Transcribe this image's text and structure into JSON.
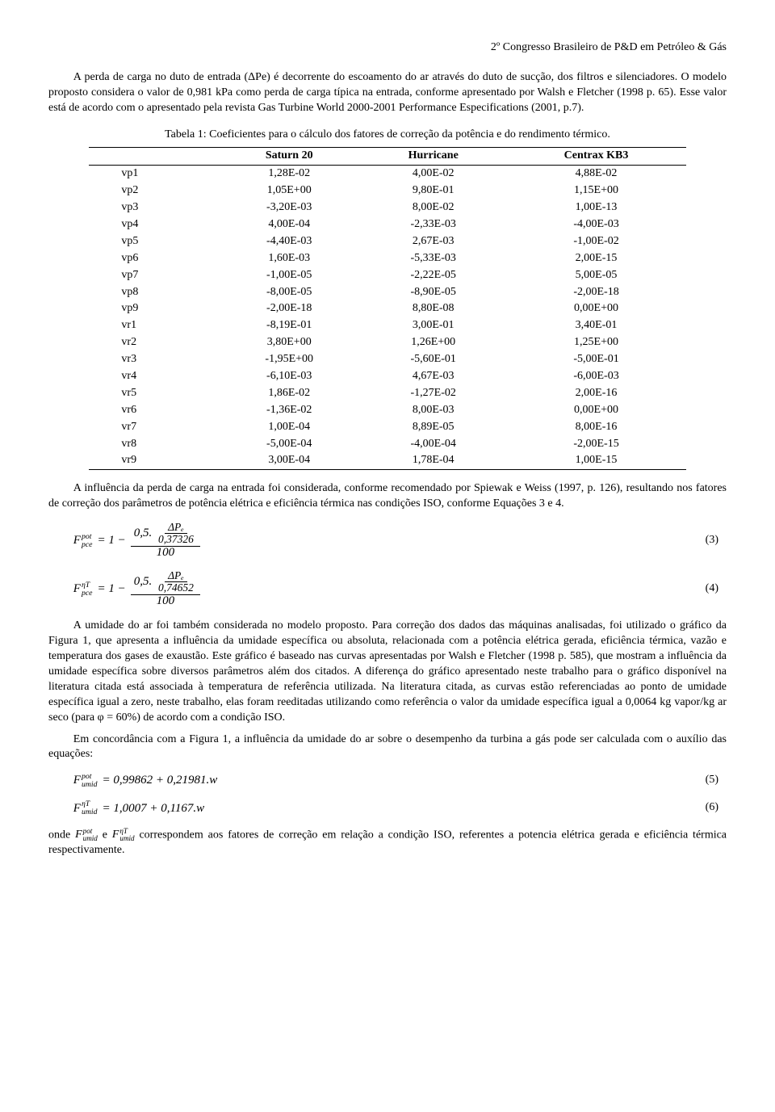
{
  "header": "2º Congresso Brasileiro de P&D em Petróleo & Gás",
  "para1": "A perda de carga no duto de entrada (ΔPe) é decorrente do escoamento do ar através do duto de sucção, dos filtros e silenciadores. O modelo proposto considera o valor de 0,981 kPa como perda de carga típica na entrada, conforme apresentado por Walsh e Fletcher (1998 p. 65). Esse valor está de acordo com o apresentado pela revista Gas Turbine World 2000-2001 Performance Especifications (2001, p.7).",
  "caption1": "Tabela 1: Coeficientes para o cálculo dos fatores de correção da potência e do rendimento térmico.",
  "table": {
    "headers": [
      "",
      "Saturn 20",
      "Hurricane",
      "Centrax KB3"
    ],
    "rows": [
      [
        "vp1",
        "1,28E-02",
        "4,00E-02",
        "4,88E-02"
      ],
      [
        "vp2",
        "1,05E+00",
        "9,80E-01",
        "1,15E+00"
      ],
      [
        "vp3",
        "-3,20E-03",
        "8,00E-02",
        "1,00E-13"
      ],
      [
        "vp4",
        "4,00E-04",
        "-2,33E-03",
        "-4,00E-03"
      ],
      [
        "vp5",
        "-4,40E-03",
        "2,67E-03",
        "-1,00E-02"
      ],
      [
        "vp6",
        "1,60E-03",
        "-5,33E-03",
        "2,00E-15"
      ],
      [
        "vp7",
        "-1,00E-05",
        "-2,22E-05",
        "5,00E-05"
      ],
      [
        "vp8",
        "-8,00E-05",
        "-8,90E-05",
        "-2,00E-18"
      ],
      [
        "vp9",
        "-2,00E-18",
        "8,80E-08",
        "0,00E+00"
      ],
      [
        "vr1",
        "-8,19E-01",
        "3,00E-01",
        "3,40E-01"
      ],
      [
        "vr2",
        "3,80E+00",
        "1,26E+00",
        "1,25E+00"
      ],
      [
        "vr3",
        "-1,95E+00",
        "-5,60E-01",
        "-5,00E-01"
      ],
      [
        "vr4",
        "-6,10E-03",
        "4,67E-03",
        "-6,00E-03"
      ],
      [
        "vr5",
        "1,86E-02",
        "-1,27E-02",
        "2,00E-16"
      ],
      [
        "vr6",
        "-1,36E-02",
        "8,00E-03",
        "0,00E+00"
      ],
      [
        "vr7",
        "1,00E-04",
        "8,89E-05",
        "8,00E-16"
      ],
      [
        "vr8",
        "-5,00E-04",
        "-4,00E-04",
        "-2,00E-15"
      ],
      [
        "vr9",
        "3,00E-04",
        "1,78E-04",
        "1,00E-15"
      ]
    ]
  },
  "para2": "A influência da perda de carga na entrada foi considerada, conforme recomendado por Spiewak e Weiss (1997, p. 126), resultando nos fatores de correção dos parâmetros de potência elétrica e eficiência térmica nas condições ISO, conforme Equações 3 e 4.",
  "eq3": {
    "lhs_sym": "F",
    "lhs_sup": "pot",
    "lhs_sub": "pce",
    "top_pref": "0,5.",
    "top_frac_num": "ΔPₑ",
    "top_frac_den": "0,37326",
    "outer_den": "100",
    "num": "(3)"
  },
  "eq4": {
    "lhs_sym": "F",
    "lhs_sup": "ηT",
    "lhs_sub": "pce",
    "top_pref": "0,5.",
    "top_frac_num": "ΔPₑ",
    "top_frac_den": "0,74652",
    "outer_den": "100",
    "num": "(4)"
  },
  "para3": "A umidade do ar foi também considerada no modelo proposto. Para correção dos dados das máquinas analisadas, foi utilizado o gráfico da Figura 1, que apresenta a influência da umidade específica ou absoluta, relacionada com a potência elétrica gerada, eficiência térmica, vazão e temperatura dos gases de exaustão. Este gráfico é baseado nas curvas apresentadas por Walsh e Fletcher (1998 p. 585), que mostram a influência da umidade específica sobre diversos parâmetros além dos citados. A diferença do gráfico apresentado neste trabalho para o gráfico disponível na literatura citada está associada à temperatura de referência utilizada. Na literatura citada, as curvas estão referenciadas ao ponto de umidade específica igual a zero, neste trabalho, elas foram reeditadas utilizando como referência o valor da umidade específica igual a 0,0064 kg vapor/kg ar seco (para φ = 60%) de acordo com a condição ISO.",
  "para4": "Em concordância com a Figura 1, a influência da umidade do ar sobre o desempenho da turbina a gás pode ser calculada com o auxílio das equações:",
  "eq5": {
    "lhs_sym": "F",
    "lhs_sup": "pot",
    "lhs_sub": "umid",
    "rhs": "= 0,99862 + 0,21981.w",
    "num": "(5)"
  },
  "eq6": {
    "lhs_sym": "F",
    "lhs_sup": "ηT",
    "lhs_sub": "umid",
    "rhs": "= 1,0007 + 0,1167.w",
    "num": "(6)"
  },
  "final": {
    "pre": "onde ",
    "f1_sup": "pot",
    "f1_sub": "umid",
    "mid": " e ",
    "f2_sup": "ηT",
    "f2_sub": "umid",
    "post": " correspondem aos fatores de correção em relação a condição ISO, referentes a potencia elétrica gerada e eficiência térmica respectivamente."
  }
}
